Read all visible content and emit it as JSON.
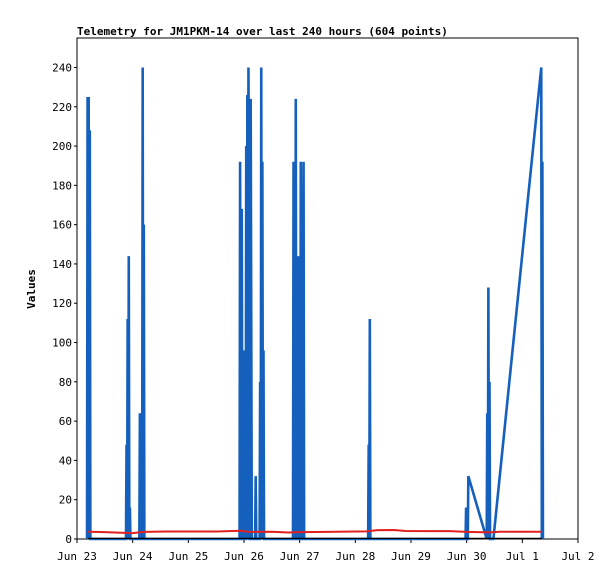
{
  "chart_data": {
    "type": "line",
    "title": "Telemetry for JM1PKM-14 over last 240 hours (604 points)",
    "xlabel": "",
    "ylabel": "Values",
    "xlim": [
      "Jun 23",
      "Jul 2"
    ],
    "ylim": [
      0,
      255
    ],
    "categories": [
      "Jun 23",
      "Jun 24",
      "Jun 25",
      "Jun 26",
      "Jun 27",
      "Jun 28",
      "Jun 29",
      "Jun 30",
      "Jul 1",
      "Jul 2"
    ],
    "yticks": [
      0,
      20,
      40,
      60,
      80,
      100,
      120,
      140,
      160,
      180,
      200,
      220,
      240
    ],
    "grid": false,
    "colors": {
      "series1": "#1560bd",
      "series2": "#e0201e",
      "series3": "#000000"
    },
    "series": [
      {
        "values": [
          [
            23.18,
            0
          ],
          [
            23.19,
            225
          ],
          [
            23.2,
            0
          ],
          [
            23.21,
            225
          ],
          [
            23.22,
            0
          ],
          [
            23.23,
            208
          ],
          [
            23.24,
            0
          ],
          [
            23.88,
            0
          ],
          [
            23.89,
            48
          ],
          [
            23.9,
            0
          ],
          [
            23.91,
            112
          ],
          [
            23.92,
            0
          ],
          [
            23.93,
            144
          ],
          [
            23.94,
            0
          ],
          [
            23.95,
            16
          ],
          [
            23.96,
            0
          ],
          [
            24.12,
            0
          ],
          [
            24.13,
            64
          ],
          [
            24.14,
            0
          ],
          [
            24.17,
            0
          ],
          [
            24.18,
            240
          ],
          [
            24.19,
            0
          ],
          [
            24.2,
            160
          ],
          [
            24.21,
            0
          ],
          [
            25.92,
            0
          ],
          [
            25.93,
            192
          ],
          [
            25.94,
            40
          ],
          [
            25.95,
            0
          ],
          [
            25.96,
            168
          ],
          [
            25.97,
            0
          ],
          [
            25.99,
            0
          ],
          [
            26.0,
            96
          ],
          [
            26.01,
            0
          ],
          [
            26.03,
            0
          ],
          [
            26.04,
            200
          ],
          [
            26.05,
            0
          ],
          [
            26.06,
            226
          ],
          [
            26.07,
            0
          ],
          [
            26.08,
            240
          ],
          [
            26.09,
            176
          ],
          [
            26.1,
            0
          ],
          [
            26.11,
            0
          ],
          [
            26.12,
            224
          ],
          [
            26.13,
            112
          ],
          [
            26.14,
            0
          ],
          [
            26.2,
            0
          ],
          [
            26.21,
            32
          ],
          [
            26.22,
            0
          ],
          [
            26.28,
            0
          ],
          [
            26.29,
            80
          ],
          [
            26.3,
            0
          ],
          [
            26.31,
            240
          ],
          [
            26.32,
            0
          ],
          [
            26.33,
            192
          ],
          [
            26.34,
            0
          ],
          [
            26.35,
            96
          ],
          [
            26.36,
            0
          ],
          [
            26.88,
            0
          ],
          [
            26.89,
            192
          ],
          [
            26.9,
            0
          ],
          [
            26.92,
            0
          ],
          [
            26.93,
            224
          ],
          [
            26.94,
            0
          ],
          [
            26.97,
            0
          ],
          [
            26.98,
            144
          ],
          [
            26.99,
            0
          ],
          [
            27.01,
            0
          ],
          [
            27.02,
            192
          ],
          [
            27.03,
            128
          ],
          [
            27.04,
            0
          ],
          [
            27.06,
            0
          ],
          [
            27.07,
            192
          ],
          [
            27.08,
            0
          ],
          [
            28.23,
            0
          ],
          [
            28.24,
            48
          ],
          [
            28.25,
            0
          ],
          [
            28.26,
            112
          ],
          [
            28.27,
            0
          ],
          [
            29.98,
            0
          ],
          [
            29.99,
            16
          ],
          [
            30.0,
            0
          ],
          [
            30.02,
            0
          ],
          [
            30.03,
            32
          ],
          [
            30.36,
            0
          ],
          [
            30.37,
            64
          ],
          [
            30.38,
            0
          ],
          [
            30.39,
            128
          ],
          [
            30.4,
            0
          ],
          [
            30.41,
            80
          ],
          [
            30.42,
            0
          ],
          [
            30.48,
            0
          ],
          [
            31.34,
            240
          ],
          [
            31.35,
            0
          ],
          [
            31.36,
            192
          ],
          [
            31.37,
            0
          ]
        ]
      },
      {
        "values": [
          [
            23.2,
            3.7
          ],
          [
            23.5,
            3.5
          ],
          [
            23.8,
            3.2
          ],
          [
            24.0,
            3.0
          ],
          [
            24.2,
            3.6
          ],
          [
            24.6,
            3.8
          ],
          [
            25.0,
            3.8
          ],
          [
            25.5,
            3.8
          ],
          [
            25.95,
            4.2
          ],
          [
            26.1,
            3.6
          ],
          [
            26.5,
            3.7
          ],
          [
            26.8,
            3.3
          ],
          [
            27.0,
            3.5
          ],
          [
            27.5,
            3.6
          ],
          [
            28.0,
            3.8
          ],
          [
            28.2,
            3.9
          ],
          [
            28.4,
            4.5
          ],
          [
            28.7,
            4.6
          ],
          [
            28.9,
            4.1
          ],
          [
            29.3,
            4.0
          ],
          [
            29.7,
            4.0
          ],
          [
            30.0,
            3.6
          ],
          [
            30.4,
            3.4
          ],
          [
            30.6,
            3.7
          ],
          [
            31.0,
            3.7
          ],
          [
            31.35,
            3.7
          ]
        ]
      },
      {
        "values": [
          [
            23.2,
            0.3
          ],
          [
            24.0,
            0.3
          ],
          [
            25.0,
            0.3
          ],
          [
            26.0,
            0.3
          ],
          [
            27.0,
            0.3
          ],
          [
            28.0,
            0.3
          ],
          [
            29.0,
            0.3
          ],
          [
            30.0,
            0.3
          ],
          [
            31.35,
            0.3
          ]
        ]
      }
    ]
  }
}
